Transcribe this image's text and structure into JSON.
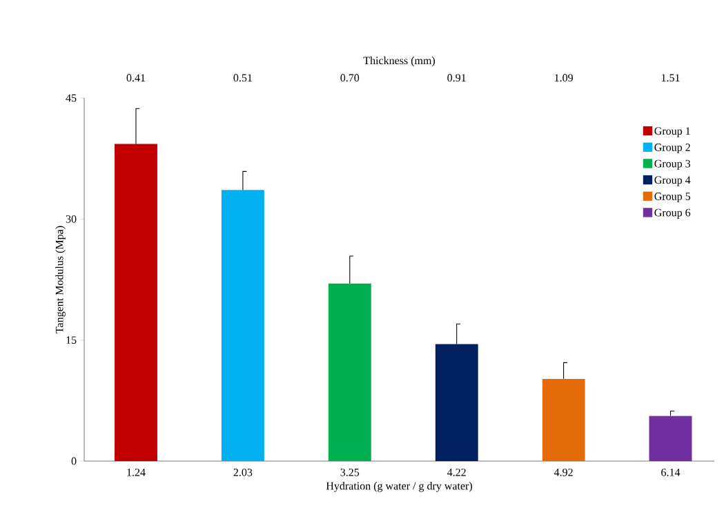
{
  "chart_data": {
    "type": "bar",
    "xlabel": "Hydration (g water / g dry water)",
    "ylabel": "Tangent Modulus (Mpa)",
    "x2label": "Thickness (mm)",
    "categories": [
      "1.24",
      "2.03",
      "3.25",
      "4.22",
      "4.92",
      "6.14"
    ],
    "annotations": [
      "0.41",
      "0.51",
      "0.70",
      "0.91",
      "1.09",
      "1.51"
    ],
    "series": [
      {
        "name": "Group 1",
        "color": "#c00000",
        "values": [
          39.3,
          null,
          null,
          null,
          null,
          null
        ],
        "errors": [
          [
            39.3,
            43.7
          ],
          null,
          null,
          null,
          null,
          null
        ]
      },
      {
        "name": "Group 2",
        "color": "#00b0f0",
        "values": [
          null,
          33.6,
          null,
          null,
          null,
          null
        ],
        "errors": [
          null,
          [
            33.6,
            35.9
          ],
          null,
          null,
          null,
          null
        ]
      },
      {
        "name": "Group 3",
        "color": "#00b050",
        "values": [
          null,
          null,
          22.0,
          null,
          null,
          null
        ],
        "errors": [
          null,
          null,
          [
            22.0,
            25.4
          ],
          null,
          null,
          null
        ]
      },
      {
        "name": "Group 4",
        "color": "#002060",
        "values": [
          null,
          null,
          null,
          14.5,
          null,
          null
        ],
        "errors": [
          null,
          null,
          null,
          [
            14.5,
            17.0
          ],
          null,
          null
        ]
      },
      {
        "name": "Group 5",
        "color": "#e36c09",
        "values": [
          null,
          null,
          null,
          null,
          10.2,
          null
        ],
        "errors": [
          null,
          null,
          null,
          null,
          [
            10.2,
            12.2
          ],
          null
        ]
      },
      {
        "name": "Group 6",
        "color": "#7030a0",
        "values": [
          null,
          null,
          null,
          null,
          null,
          5.6
        ],
        "errors": [
          null,
          null,
          null,
          null,
          null,
          [
            5.6,
            6.2
          ]
        ]
      }
    ],
    "ylim": [
      0,
      45
    ],
    "yticks": [
      0,
      15,
      30,
      45
    ],
    "grid": false,
    "legend": "top right"
  }
}
